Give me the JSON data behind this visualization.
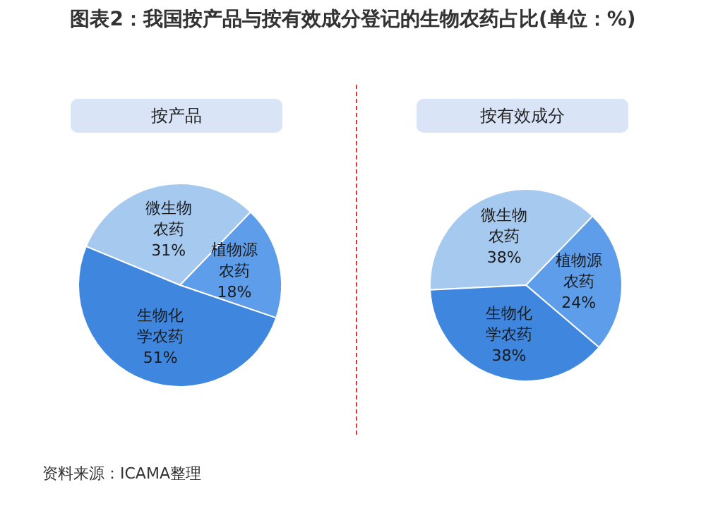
{
  "chart_data": [
    {
      "type": "pie",
      "title": "图表2：我国按产品与按有效成分登记的生物农药占比(单位：%)",
      "subtitle": "按产品",
      "categories": [
        "微生物农药",
        "植物源农药",
        "生物化学农药"
      ],
      "values": [
        31,
        18,
        51
      ],
      "value_labels": [
        "31%",
        "18%",
        "51%"
      ],
      "colors": [
        "#a6c9f0",
        "#5e9de9",
        "#3f86de"
      ],
      "legend": false,
      "annotations": [
        "资料来源：ICAMA整理"
      ]
    },
    {
      "type": "pie",
      "subtitle": "按有效成分",
      "categories": [
        "微生物农药",
        "植物源农药",
        "生物化学农药"
      ],
      "values": [
        38,
        24,
        38
      ],
      "value_labels": [
        "38%",
        "24%",
        "38%"
      ],
      "colors": [
        "#a6c9f0",
        "#5e9de9",
        "#3f86de"
      ],
      "legend": false
    }
  ]
}
